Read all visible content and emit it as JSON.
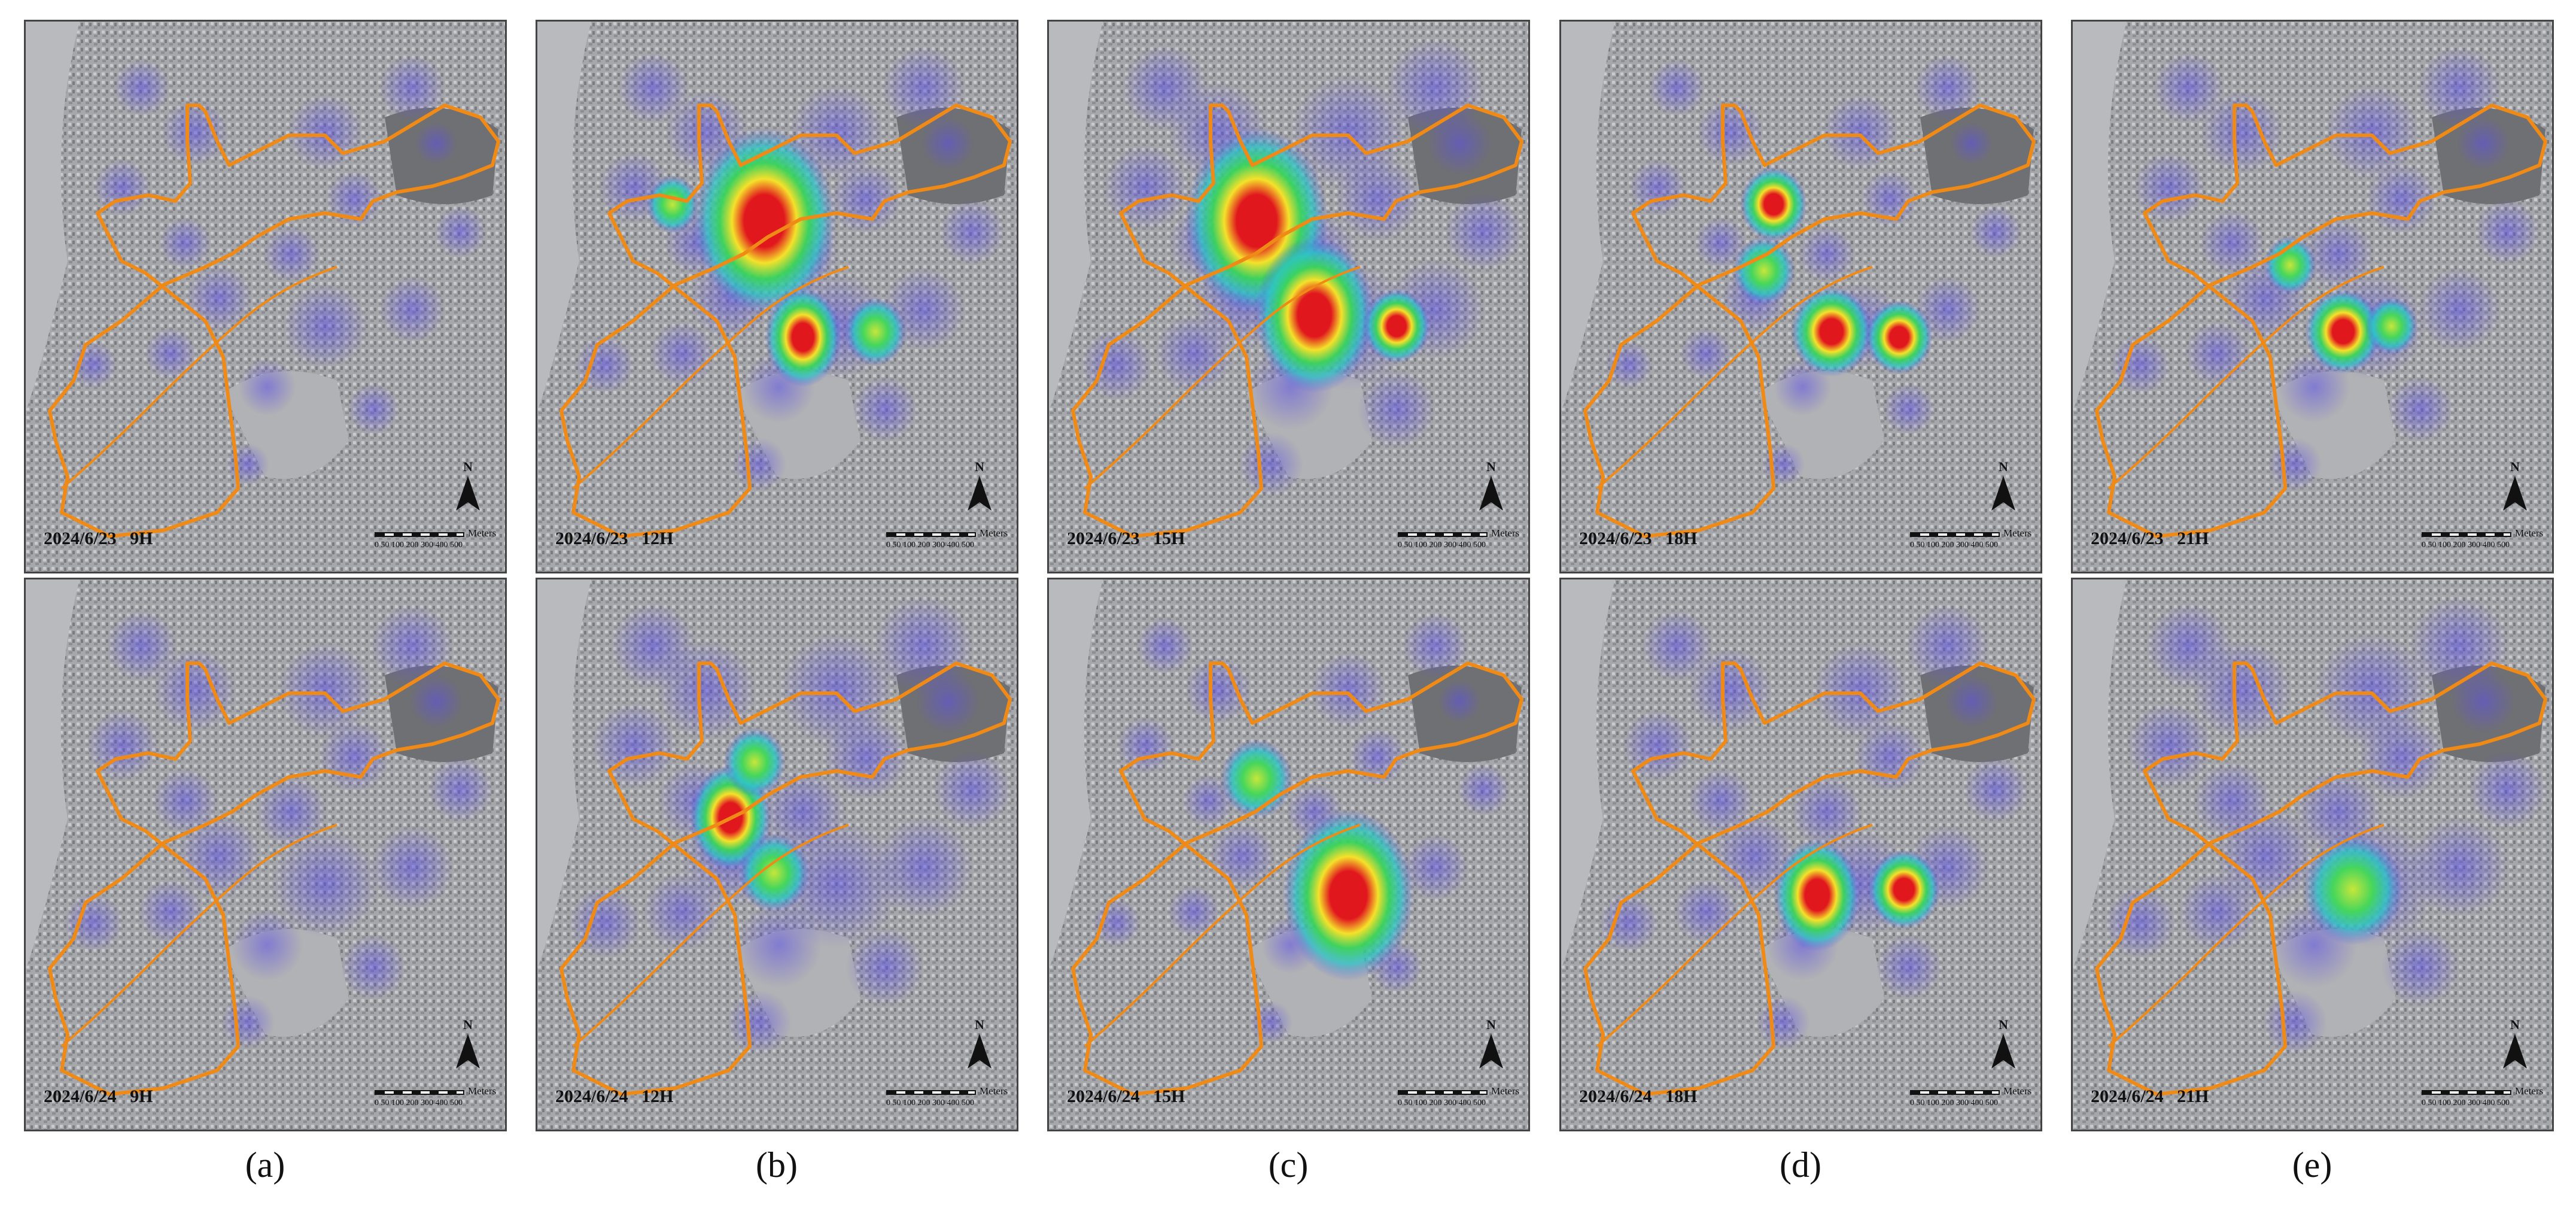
{
  "scale_bar": {
    "unit": "Meters",
    "ticks": "0 50 100  200  300  400  500"
  },
  "north_label": "N",
  "columns": [
    {
      "caption": "(a)",
      "top": "2024/6/23   9H",
      "bottom": "2024/6/24   9H",
      "hot_top": [],
      "hot_bottom": []
    },
    {
      "caption": "(b)",
      "top": "2024/6/23   12H",
      "bottom": "2024/6/24   12H",
      "hot_top": [
        [
          0.47,
          0.36,
          1.0,
          60
        ],
        [
          0.28,
          0.33,
          0.72,
          22
        ],
        [
          0.55,
          0.57,
          0.92,
          32
        ],
        [
          0.7,
          0.56,
          0.72,
          26
        ]
      ],
      "hot_bottom": [
        [
          0.4,
          0.43,
          0.92,
          34
        ],
        [
          0.45,
          0.33,
          0.72,
          26
        ],
        [
          0.49,
          0.53,
          0.78,
          30
        ]
      ]
    },
    {
      "caption": "(c)",
      "top": "2024/6/23   15H",
      "bottom": "2024/6/24   15H",
      "hot_top": [
        [
          0.43,
          0.36,
          1.0,
          60
        ],
        [
          0.55,
          0.53,
          0.95,
          50
        ],
        [
          0.72,
          0.55,
          0.86,
          28
        ]
      ],
      "hot_bottom": [
        [
          0.43,
          0.36,
          0.72,
          30
        ],
        [
          0.62,
          0.57,
          0.98,
          55
        ]
      ]
    },
    {
      "caption": "(d)",
      "top": "2024/6/23   18H",
      "bottom": "2024/6/24   18H",
      "hot_top": [
        [
          0.44,
          0.33,
          0.82,
          28
        ],
        [
          0.56,
          0.56,
          0.86,
          34
        ],
        [
          0.7,
          0.57,
          0.86,
          28
        ],
        [
          0.42,
          0.45,
          0.6,
          26
        ]
      ],
      "hot_bottom": [
        [
          0.53,
          0.57,
          0.92,
          36
        ],
        [
          0.71,
          0.56,
          0.86,
          30
        ]
      ]
    },
    {
      "caption": "(e)",
      "top": "2024/6/23   21H",
      "bottom": "2024/6/24   21H",
      "hot_top": [
        [
          0.56,
          0.56,
          0.86,
          32
        ],
        [
          0.45,
          0.44,
          0.55,
          22
        ],
        [
          0.66,
          0.55,
          0.5,
          22
        ]
      ],
      "hot_bottom": [
        [
          0.58,
          0.56,
          0.6,
          42
        ]
      ]
    }
  ]
}
